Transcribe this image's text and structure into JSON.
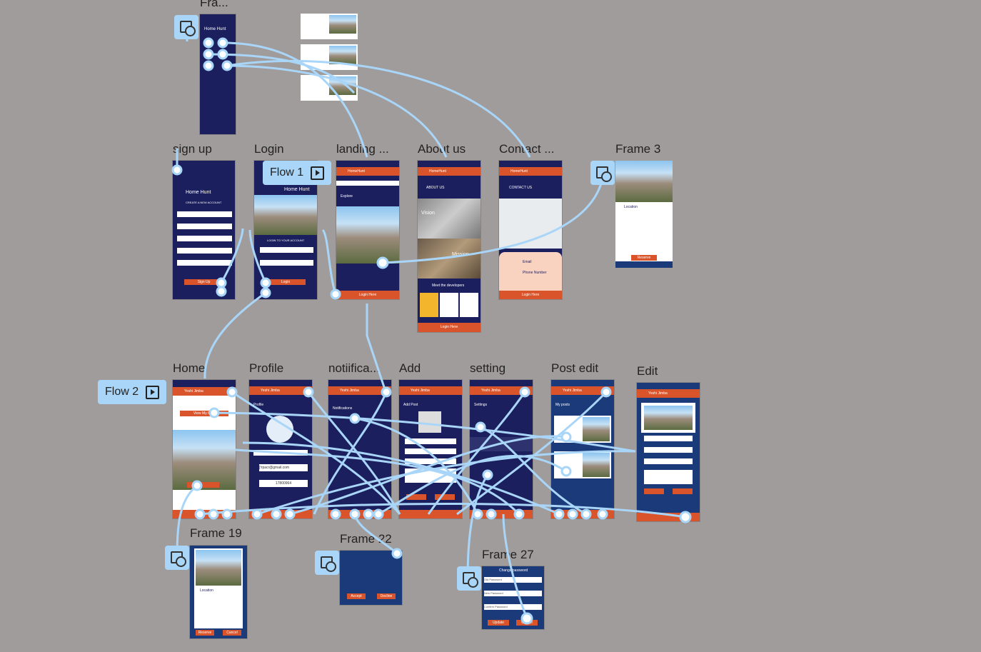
{
  "frames": {
    "fra": "Fra...",
    "signup": "sign up",
    "login": "Login",
    "landing": "landing ...",
    "about": "About us",
    "contact": "Contact ...",
    "frame3": "Frame 3",
    "home": "Home",
    "profile": "Profile",
    "notifications": "notiifica...",
    "add": "Add",
    "setting": "setting",
    "postedit": "Post edit",
    "edit": "Edit",
    "frame19": "Frame 19",
    "frame22": "Frame 22",
    "frame27": "Frame 27"
  },
  "flows": {
    "flow1": "Flow 1",
    "flow2": "Flow 2"
  },
  "screens": {
    "brand": "Home Hunt",
    "create_account": "CREATE A NEW ACCOUNT",
    "username": "Username",
    "email": "Email",
    "phone": "Phone number",
    "new_password": "New Password",
    "confirm_password": "Confirm Password",
    "signup_btn": "Sign Up",
    "login_to_account": "LOGIN TO YOUR ACCOUNT",
    "password": "Password",
    "login_btn": "Login",
    "homehunt_header": "HomeHunt",
    "explore": "Explore",
    "login_here": "Login Here",
    "about_us": "ABOUT US",
    "vision": "Vision",
    "mission": "Mission",
    "meet_devs": "Meet the developers",
    "contact_us": "CONTACT US",
    "contact_email": "Email",
    "phone_number": "Phone Number",
    "location": "Location",
    "user_name": "Yeshi Jimba",
    "view_my_post": "View My Post",
    "profile_title": "Profile",
    "profile_email": "[!rpacr@gmail.com",
    "profile_phone": "17800964",
    "notifications_title": "Notifications",
    "add_post": "Add Post",
    "settings_title": "Settings",
    "my_posts": "My posts",
    "change_password": "Change password",
    "old_password": "Old Password",
    "new_password2": "New Password",
    "confirm_password2": "Confirm Password",
    "update": "Update",
    "cancel": "Cancel",
    "accept": "Accept",
    "decline": "Decline",
    "reserve": "Reserve"
  },
  "colors": {
    "canvas": "#a19c9c",
    "navy": "#1b1f5e",
    "orange": "#d9542b",
    "wire": "#a9d6f8"
  }
}
